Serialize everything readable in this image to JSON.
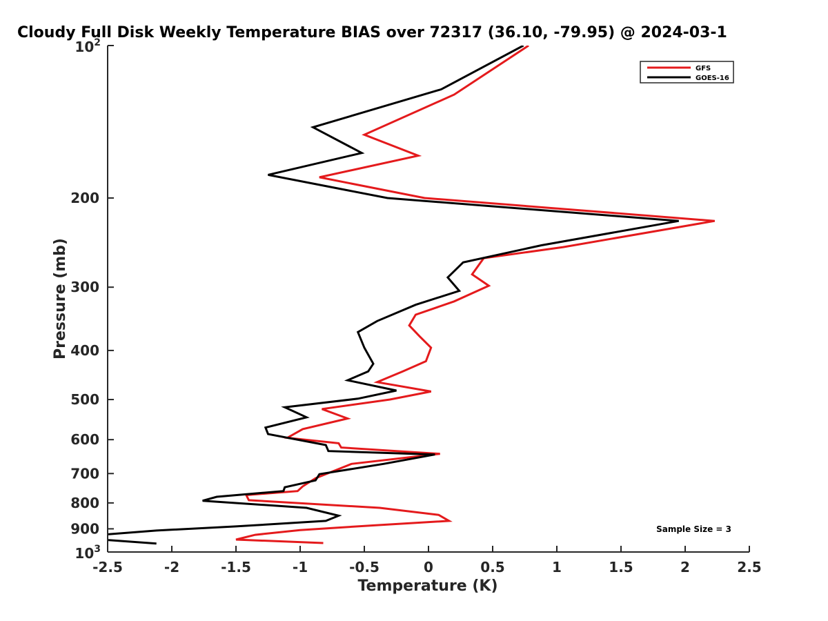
{
  "chart_data": {
    "type": "line",
    "title": "Cloudy Full Disk Weekly Temperature BIAS over 72317 (36.10, -79.95) @ 2024-03-1",
    "xlabel": "Temperature (K)",
    "ylabel": "Pressure (mb)",
    "xlim": [
      -2.5,
      2.5
    ],
    "ylim": [
      100,
      1000
    ],
    "y_scale": "log",
    "y_reversed": true,
    "x_ticks": [
      -2.5,
      -2,
      -1.5,
      -1,
      -0.5,
      0,
      0.5,
      1,
      1.5,
      2,
      2.5
    ],
    "x_tick_labels": [
      "-2.5",
      "-2",
      "-1.5",
      "-1",
      "-0.5",
      "0",
      "0.5",
      "1",
      "1.5",
      "2",
      "2.5"
    ],
    "y_ticks": [
      {
        "value": 100,
        "base": "10",
        "exp": "2"
      },
      {
        "value": 200,
        "label": "200"
      },
      {
        "value": 300,
        "label": "300"
      },
      {
        "value": 400,
        "label": "400"
      },
      {
        "value": 500,
        "label": "500"
      },
      {
        "value": 600,
        "label": "600"
      },
      {
        "value": 700,
        "label": "700"
      },
      {
        "value": 800,
        "label": "800"
      },
      {
        "value": 900,
        "label": "900"
      },
      {
        "value": 1000,
        "base": "10",
        "exp": "3"
      }
    ],
    "grid": false,
    "legend_position": "top-right",
    "annotation": "Sample Size = 3",
    "series": [
      {
        "name": "GFS",
        "color": "#e41a1c",
        "points": [
          [
            0.78,
            100
          ],
          [
            0.2,
            125
          ],
          [
            -0.5,
            150
          ],
          [
            -0.08,
            165
          ],
          [
            -0.85,
            182
          ],
          [
            -0.03,
            200
          ],
          [
            2.23,
            222
          ],
          [
            1.05,
            250
          ],
          [
            0.43,
            263
          ],
          [
            0.34,
            283
          ],
          [
            0.47,
            298
          ],
          [
            0.2,
            320
          ],
          [
            -0.1,
            340
          ],
          [
            -0.15,
            357
          ],
          [
            -0.07,
            375
          ],
          [
            0.02,
            395
          ],
          [
            -0.02,
            420
          ],
          [
            -0.2,
            440
          ],
          [
            -0.4,
            462
          ],
          [
            0.02,
            482
          ],
          [
            -0.3,
            500
          ],
          [
            -0.83,
            522
          ],
          [
            -0.63,
            545
          ],
          [
            -0.98,
            572
          ],
          [
            -1.1,
            595
          ],
          [
            -0.7,
            610
          ],
          [
            -0.68,
            622
          ],
          [
            0.09,
            640
          ],
          [
            -0.6,
            670
          ],
          [
            -0.88,
            715
          ],
          [
            -0.98,
            742
          ],
          [
            -1.02,
            758
          ],
          [
            -1.42,
            772
          ],
          [
            -1.4,
            790
          ],
          [
            -0.38,
            818
          ],
          [
            0.08,
            845
          ],
          [
            0.16,
            868
          ],
          [
            -0.4,
            885
          ],
          [
            -1.0,
            905
          ],
          [
            -1.35,
            925
          ],
          [
            -1.5,
            945
          ],
          [
            -0.82,
            960
          ]
        ]
      },
      {
        "name": "GOES-16",
        "color": "#000000",
        "points": [
          [
            0.74,
            100
          ],
          [
            0.1,
            122
          ],
          [
            -0.9,
            145
          ],
          [
            -0.52,
            163
          ],
          [
            -1.25,
            180
          ],
          [
            -0.32,
            200
          ],
          [
            1.95,
            222
          ],
          [
            0.88,
            248
          ],
          [
            0.27,
            268
          ],
          [
            0.15,
            287
          ],
          [
            0.24,
            305
          ],
          [
            -0.1,
            325
          ],
          [
            -0.4,
            350
          ],
          [
            -0.55,
            368
          ],
          [
            -0.5,
            395
          ],
          [
            -0.43,
            425
          ],
          [
            -0.47,
            440
          ],
          [
            -0.63,
            458
          ],
          [
            -0.25,
            480
          ],
          [
            -0.55,
            498
          ],
          [
            -1.12,
            518
          ],
          [
            -0.95,
            542
          ],
          [
            -1.27,
            568
          ],
          [
            -1.25,
            585
          ],
          [
            -0.8,
            615
          ],
          [
            -0.78,
            632
          ],
          [
            0.05,
            642
          ],
          [
            -0.35,
            670
          ],
          [
            -0.85,
            702
          ],
          [
            -0.88,
            722
          ],
          [
            -1.12,
            745
          ],
          [
            -1.13,
            758
          ],
          [
            -1.65,
            778
          ],
          [
            -1.76,
            792
          ],
          [
            -0.95,
            818
          ],
          [
            -0.7,
            848
          ],
          [
            -0.8,
            868
          ],
          [
            -1.5,
            890
          ],
          [
            -2.12,
            907
          ],
          [
            -2.55,
            925
          ],
          [
            -2.55,
            945
          ],
          [
            -2.12,
            962
          ]
        ]
      }
    ]
  }
}
